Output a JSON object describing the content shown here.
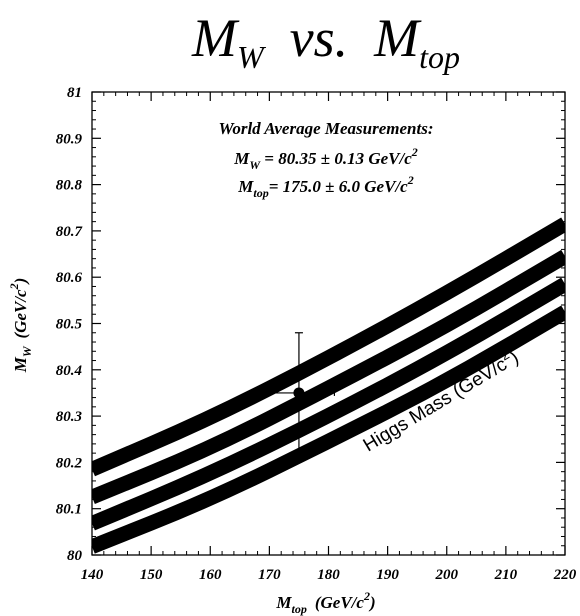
{
  "title": {
    "m1": "M",
    "sub1": "W",
    "vs": "vs.",
    "m2": "M",
    "sub2": "top"
  },
  "chart_data": {
    "type": "line",
    "xlabel": {
      "main": "M",
      "sub": "top",
      "unit_open": "(GeV/c",
      "unit_sup": "2",
      "unit_close": ")"
    },
    "ylabel": {
      "main": "M",
      "sub": "W",
      "unit_open": "(GeV/c",
      "unit_sup": "2",
      "unit_close": ")"
    },
    "xlim": [
      140,
      220
    ],
    "ylim": [
      80,
      81
    ],
    "x_ticks": [
      140,
      150,
      160,
      170,
      180,
      190,
      200,
      210,
      220
    ],
    "x_tick_labels": [
      "140",
      "150",
      "160",
      "170",
      "180",
      "190",
      "200",
      "210",
      "220"
    ],
    "y_ticks": [
      80,
      80.1,
      80.2,
      80.3,
      80.4,
      80.5,
      80.6,
      80.7,
      80.8,
      80.9,
      81
    ],
    "y_tick_labels": [
      "80",
      "80.1",
      "80.2",
      "80.3",
      "80.4",
      "80.5",
      "80.6",
      "80.7",
      "80.8",
      "80.9",
      "81"
    ],
    "grid": false,
    "series": [
      {
        "x": [
          140,
          160,
          180,
          200,
          220
        ],
        "y": [
          80.185,
          80.295,
          80.425,
          80.565,
          80.715
        ]
      },
      {
        "x": [
          140,
          160,
          180,
          200,
          220
        ],
        "y": [
          80.125,
          80.23,
          80.36,
          80.495,
          80.645
        ]
      },
      {
        "x": [
          140,
          160,
          180,
          200,
          220
        ],
        "y": [
          80.068,
          80.175,
          80.3,
          80.435,
          80.585
        ]
      },
      {
        "x": [
          140,
          160,
          180,
          200,
          220
        ],
        "y": [
          80.018,
          80.12,
          80.245,
          80.375,
          80.525
        ]
      }
    ],
    "measurement": {
      "x": 175.0,
      "x_err": 6.0,
      "y": 80.35,
      "y_err": 0.13
    },
    "annotation": {
      "heading": "World Average Measurements:",
      "line1": {
        "m": "M",
        "sub": "W",
        "text": " = 80.35 ± 0.13 GeV/c",
        "sup": "2"
      },
      "line2": {
        "m": "M",
        "sub": "top",
        "text": "= 175.0 ±  6.0 GeV/c",
        "sup": "2"
      }
    },
    "band_label": {
      "text": "Higgs Mass (GeV/c",
      "sup": "2",
      "close": ")"
    }
  },
  "colors": {
    "band": "#000000",
    "axis": "#000000",
    "background": "#ffffff"
  }
}
